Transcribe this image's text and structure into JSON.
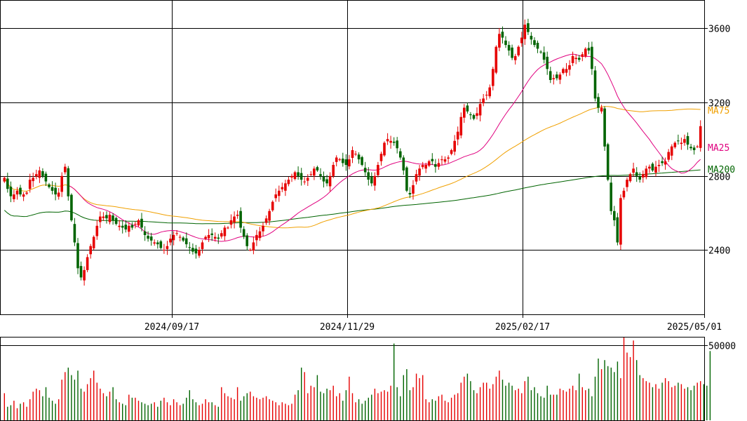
{
  "chart_data": [
    {
      "type": "candlestick",
      "y_ticks": [
        "3600",
        "3200",
        "2800",
        "2400"
      ],
      "ylim": [
        2050,
        3750
      ],
      "x_tick_labels": [
        "2024/09/17",
        "2024/11/29",
        "2025/02/17",
        "2025/05/01"
      ],
      "grid": true,
      "colors": {
        "up": "#e60000",
        "down": "#006400",
        "ma25": "#e0007f",
        "ma75": "#f0a000",
        "ma200": "#006400"
      },
      "moving_average_labels": {
        "ma75": "MA75",
        "ma25": "MA25",
        "ma200": "MA200"
      },
      "closes": [
        2790,
        2730,
        2690,
        2700,
        2720,
        2700,
        2700,
        2710,
        2780,
        2790,
        2810,
        2830,
        2800,
        2770,
        2740,
        2720,
        2700,
        2710,
        2800,
        2850,
        2690,
        2560,
        2440,
        2300,
        2250,
        2290,
        2360,
        2420,
        2470,
        2530,
        2580,
        2580,
        2570,
        2590,
        2560,
        2540,
        2530,
        2520,
        2510,
        2530,
        2520,
        2540,
        2560,
        2520,
        2480,
        2460,
        2450,
        2440,
        2430,
        2410,
        2400,
        2420,
        2460,
        2480,
        2490,
        2470,
        2450,
        2430,
        2410,
        2390,
        2380,
        2400,
        2440,
        2470,
        2480,
        2480,
        2470,
        2460,
        2490,
        2520,
        2520,
        2560,
        2580,
        2590,
        2520,
        2470,
        2420,
        2400,
        2440,
        2480,
        2500,
        2530,
        2570,
        2610,
        2660,
        2700,
        2720,
        2740,
        2760,
        2780,
        2800,
        2820,
        2800,
        2780,
        2770,
        2790,
        2810,
        2840,
        2830,
        2800,
        2770,
        2760,
        2800,
        2860,
        2900,
        2890,
        2870,
        2860,
        2890,
        2940,
        2920,
        2890,
        2860,
        2820,
        2780,
        2760,
        2800,
        2860,
        2920,
        2980,
        3000,
        2990,
        2980,
        2950,
        2900,
        2830,
        2720,
        2700,
        2750,
        2810,
        2840,
        2860,
        2860,
        2880,
        2880,
        2850,
        2870,
        2890,
        2890,
        2900,
        2940,
        2990,
        3040,
        3120,
        3170,
        3150,
        3130,
        3110,
        3140,
        3190,
        3220,
        3240,
        3280,
        3380,
        3500,
        3570,
        3550,
        3510,
        3480,
        3440,
        3450,
        3500,
        3550,
        3620,
        3580,
        3540,
        3510,
        3490,
        3470,
        3430,
        3380,
        3320,
        3330,
        3330,
        3350,
        3380,
        3380,
        3400,
        3450,
        3440,
        3430,
        3460,
        3490,
        3480,
        3380,
        3220,
        3170,
        3170,
        2960,
        2780,
        2610,
        2560,
        2440,
        2680,
        2720,
        2780,
        2810,
        2840,
        2800,
        2780,
        2810,
        2840,
        2850,
        2830,
        2850,
        2860,
        2870,
        2880,
        2930,
        2960,
        2980,
        2990,
        2980,
        3000,
        2970,
        2950,
        2940,
        2960,
        3070
      ],
      "volume_ticks": [
        "50000"
      ],
      "volume_ylim": [
        0,
        55000
      ],
      "volumes": [
        18000,
        9000,
        10000,
        13000,
        8000,
        11000,
        12000,
        9000,
        14000,
        19000,
        21000,
        20000,
        16000,
        22000,
        15000,
        13000,
        11000,
        14000,
        27000,
        32000,
        35000,
        30000,
        27000,
        33000,
        21000,
        19000,
        24000,
        28000,
        33000,
        25000,
        21000,
        18000,
        16000,
        19000,
        22000,
        14000,
        12000,
        11000,
        10000,
        17000,
        15000,
        15000,
        13000,
        12000,
        11000,
        10000,
        11000,
        12000,
        9000,
        13000,
        15000,
        12000,
        10000,
        14000,
        12000,
        10000,
        11000,
        15000,
        20000,
        14000,
        12000,
        10000,
        11000,
        14000,
        12000,
        12000,
        10000,
        9000,
        22000,
        18000,
        16000,
        15000,
        14000,
        22000,
        13000,
        16000,
        18000,
        19000,
        16000,
        15000,
        14000,
        15000,
        16000,
        14000,
        13000,
        12000,
        10000,
        12000,
        11000,
        10000,
        11000,
        17000,
        20000,
        35000,
        32000,
        18000,
        23000,
        22000,
        30000,
        19000,
        18000,
        21000,
        20000,
        23000,
        16000,
        18000,
        13000,
        20000,
        29000,
        18000,
        12000,
        14000,
        11000,
        13000,
        15000,
        17000,
        21000,
        18000,
        19000,
        20000,
        19000,
        23000,
        51000,
        22000,
        16000,
        30000,
        34000,
        20000,
        22000,
        31000,
        28000,
        30000,
        14000,
        12000,
        14000,
        13000,
        16000,
        17000,
        13000,
        12000,
        15000,
        17000,
        18000,
        25000,
        29000,
        31000,
        26000,
        20000,
        18000,
        22000,
        25000,
        25000,
        21000,
        24000,
        29000,
        33000,
        27000,
        23000,
        25000,
        23000,
        20000,
        21000,
        18000,
        26000,
        29000,
        20000,
        22000,
        18000,
        16000,
        15000,
        23000,
        17000,
        17000,
        17000,
        21000,
        20000,
        19000,
        21000,
        23000,
        20000,
        31000,
        22000,
        20000,
        21000,
        16000,
        29000,
        41000,
        34000,
        40000,
        36000,
        35000,
        32000,
        39000,
        28000,
        55000,
        45000,
        42000,
        53000,
        40000,
        30000,
        28000,
        26000,
        25000,
        22000,
        24000,
        21000,
        25000,
        28000,
        26000,
        22000,
        23000,
        25000,
        24000,
        21000,
        22000,
        20000,
        23000,
        25000,
        26000,
        24000,
        23000,
        46000
      ]
    }
  ]
}
